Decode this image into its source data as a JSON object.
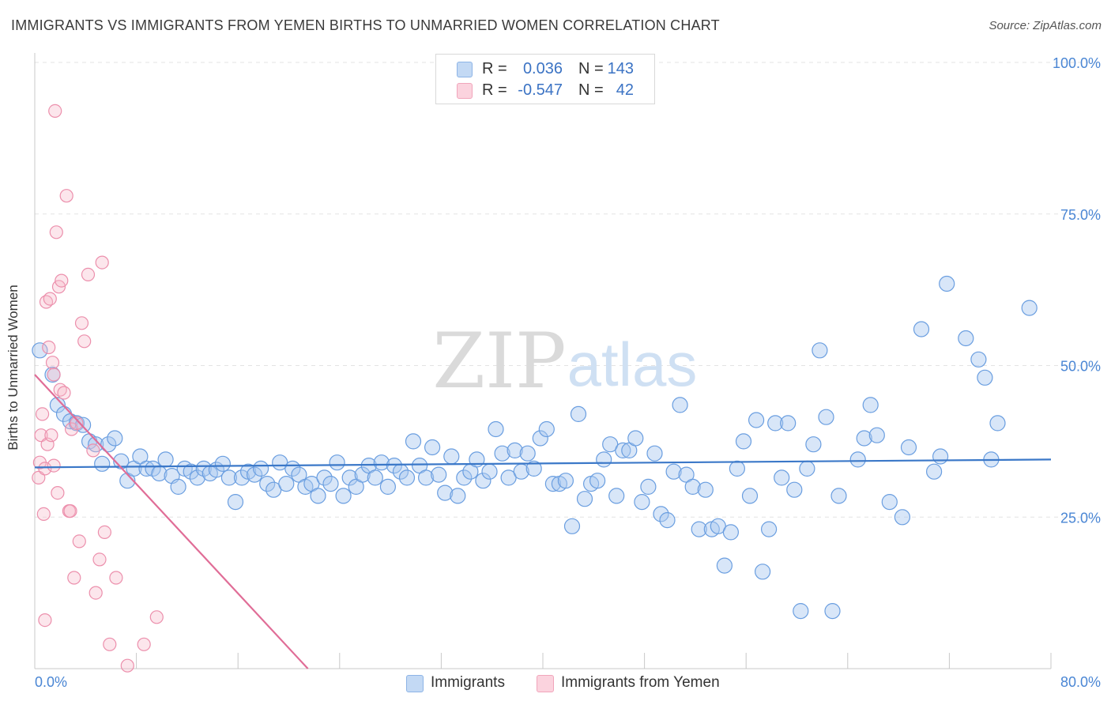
{
  "title": "IMMIGRANTS VS IMMIGRANTS FROM YEMEN BIRTHS TO UNMARRIED WOMEN CORRELATION CHART",
  "source": "Source: ZipAtlas.com",
  "watermark": {
    "zip": "ZIP",
    "atlas": "atlas"
  },
  "legend": {
    "rows": [
      {
        "r_label": "R =",
        "r_value": "0.036",
        "n_label": "N =",
        "n_value": "143",
        "color": "#a9c8ef"
      },
      {
        "r_label": "R =",
        "r_value": "-0.547",
        "n_label": "N =",
        "n_value": "42",
        "color": "#f6b8c9"
      }
    ],
    "bottom": [
      {
        "label": "Immigrants",
        "color": "#a9c8ef"
      },
      {
        "label": "Immigrants from Yemen",
        "color": "#f6b8c9"
      }
    ]
  },
  "chart_data": {
    "type": "scatter",
    "title": "IMMIGRANTS VS IMMIGRANTS FROM YEMEN BIRTHS TO UNMARRIED WOMEN CORRELATION CHART",
    "xlabel": "",
    "ylabel": "Births to Unmarried Women",
    "xlim": [
      0,
      80
    ],
    "ylim": [
      0,
      100
    ],
    "x_tick_labels": [
      "0.0%",
      "80.0%"
    ],
    "y_ticks": [
      25,
      50,
      75,
      100
    ],
    "y_tick_labels": [
      "25.0%",
      "50.0%",
      "75.0%",
      "100.0%"
    ],
    "grid": "horizontal dashed",
    "legend_position": "top-center",
    "series": [
      {
        "name": "Immigrants",
        "color": "#a9c8ef",
        "stroke": "#6a9ee0",
        "trend": {
          "x": [
            0,
            80
          ],
          "y": [
            33.2,
            34.5
          ],
          "color": "#3b78c8"
        },
        "points": [
          [
            0.4,
            52.5
          ],
          [
            1.4,
            48.5
          ],
          [
            1.8,
            43.5
          ],
          [
            2.3,
            42
          ],
          [
            2.8,
            40.8
          ],
          [
            3.3,
            40.5
          ],
          [
            3.8,
            40.2
          ],
          [
            4.3,
            37.5
          ],
          [
            4.8,
            37
          ],
          [
            5.3,
            33.8
          ],
          [
            5.8,
            37
          ],
          [
            6.3,
            38
          ],
          [
            6.8,
            34.2
          ],
          [
            7.3,
            31
          ],
          [
            7.8,
            33
          ],
          [
            8.3,
            35
          ],
          [
            8.8,
            33
          ],
          [
            9.3,
            33
          ],
          [
            9.8,
            32.2
          ],
          [
            10.3,
            34.5
          ],
          [
            10.8,
            31.8
          ],
          [
            11.3,
            30
          ],
          [
            11.8,
            33
          ],
          [
            12.3,
            32.5
          ],
          [
            12.8,
            31.5
          ],
          [
            13.3,
            33
          ],
          [
            13.8,
            32.2
          ],
          [
            14.3,
            32.8
          ],
          [
            14.8,
            33.8
          ],
          [
            15.3,
            31.5
          ],
          [
            15.8,
            27.5
          ],
          [
            16.3,
            31.5
          ],
          [
            16.8,
            32.5
          ],
          [
            17.3,
            32
          ],
          [
            17.8,
            33
          ],
          [
            18.3,
            30.5
          ],
          [
            18.8,
            29.5
          ],
          [
            19.3,
            34
          ],
          [
            19.8,
            30.5
          ],
          [
            20.3,
            33
          ],
          [
            20.8,
            32
          ],
          [
            21.3,
            30
          ],
          [
            21.8,
            30.5
          ],
          [
            22.3,
            28.5
          ],
          [
            22.8,
            31.5
          ],
          [
            23.3,
            30.5
          ],
          [
            23.8,
            34
          ],
          [
            24.3,
            28.5
          ],
          [
            24.8,
            31.5
          ],
          [
            25.3,
            30
          ],
          [
            25.8,
            32
          ],
          [
            26.3,
            33.5
          ],
          [
            26.8,
            31.5
          ],
          [
            27.3,
            34
          ],
          [
            27.8,
            30
          ],
          [
            28.3,
            33.5
          ],
          [
            28.8,
            32.5
          ],
          [
            29.3,
            31.5
          ],
          [
            29.8,
            37.5
          ],
          [
            30.3,
            33.5
          ],
          [
            30.8,
            31.5
          ],
          [
            31.3,
            36.5
          ],
          [
            31.8,
            32
          ],
          [
            32.3,
            29
          ],
          [
            32.8,
            35
          ],
          [
            33.3,
            28.5
          ],
          [
            33.8,
            31.5
          ],
          [
            34.3,
            32.5
          ],
          [
            34.8,
            34.5
          ],
          [
            35.3,
            31
          ],
          [
            35.8,
            32.5
          ],
          [
            36.3,
            39.5
          ],
          [
            36.8,
            35.5
          ],
          [
            37.3,
            31.5
          ],
          [
            37.8,
            36
          ],
          [
            38.3,
            32.5
          ],
          [
            38.8,
            35.5
          ],
          [
            39.3,
            33
          ],
          [
            39.8,
            38
          ],
          [
            40.3,
            39.5
          ],
          [
            40.8,
            30.5
          ],
          [
            41.3,
            30.5
          ],
          [
            41.8,
            31
          ],
          [
            42.3,
            23.5
          ],
          [
            42.8,
            42
          ],
          [
            43.3,
            28
          ],
          [
            43.8,
            30.5
          ],
          [
            44.3,
            31
          ],
          [
            44.8,
            34.5
          ],
          [
            45.3,
            37
          ],
          [
            45.8,
            28.5
          ],
          [
            46.3,
            36
          ],
          [
            46.8,
            36
          ],
          [
            47.3,
            38
          ],
          [
            47.8,
            27.5
          ],
          [
            48.3,
            30
          ],
          [
            48.8,
            35.5
          ],
          [
            49.3,
            25.5
          ],
          [
            49.8,
            24.5
          ],
          [
            50.3,
            32.5
          ],
          [
            50.8,
            43.5
          ],
          [
            51.3,
            32
          ],
          [
            51.8,
            30
          ],
          [
            52.3,
            23
          ],
          [
            52.8,
            29.5
          ],
          [
            53.3,
            23
          ],
          [
            53.8,
            23.5
          ],
          [
            54.3,
            17
          ],
          [
            54.8,
            22.5
          ],
          [
            55.3,
            33
          ],
          [
            55.8,
            37.5
          ],
          [
            56.3,
            28.5
          ],
          [
            56.8,
            41
          ],
          [
            57.3,
            16
          ],
          [
            57.8,
            23
          ],
          [
            58.3,
            40.5
          ],
          [
            58.8,
            31.5
          ],
          [
            59.3,
            40.5
          ],
          [
            59.8,
            29.5
          ],
          [
            60.3,
            9.5
          ],
          [
            60.8,
            33
          ],
          [
            61.3,
            37
          ],
          [
            61.8,
            52.5
          ],
          [
            62.3,
            41.5
          ],
          [
            62.8,
            9.5
          ],
          [
            63.3,
            28.5
          ],
          [
            64.8,
            34.5
          ],
          [
            65.3,
            38
          ],
          [
            65.8,
            43.5
          ],
          [
            66.3,
            38.5
          ],
          [
            67.3,
            27.5
          ],
          [
            68.3,
            25
          ],
          [
            68.8,
            36.5
          ],
          [
            69.8,
            56
          ],
          [
            70.8,
            32.5
          ],
          [
            71.3,
            35
          ],
          [
            71.8,
            63.5
          ],
          [
            73.3,
            54.5
          ],
          [
            74.3,
            51
          ],
          [
            74.8,
            48
          ],
          [
            75.3,
            34.5
          ],
          [
            75.8,
            40.5
          ],
          [
            78.3,
            59.5
          ]
        ]
      },
      {
        "name": "Immigrants from Yemen",
        "color": "#f6b8c9",
        "stroke": "#ec8fac",
        "trend": {
          "x": [
            0,
            21.5
          ],
          "y": [
            48.5,
            0
          ],
          "color": "#e06d97"
        },
        "points": [
          [
            0.3,
            31.5
          ],
          [
            0.4,
            34
          ],
          [
            0.5,
            38.5
          ],
          [
            0.6,
            42
          ],
          [
            0.7,
            25.5
          ],
          [
            0.8,
            33
          ],
          [
            0.9,
            60.5
          ],
          [
            1.0,
            37
          ],
          [
            1.1,
            53
          ],
          [
            1.2,
            61
          ],
          [
            1.3,
            38.5
          ],
          [
            1.4,
            50.5
          ],
          [
            1.5,
            48.5
          ],
          [
            1.6,
            92
          ],
          [
            1.7,
            72
          ],
          [
            1.8,
            29
          ],
          [
            1.9,
            63
          ],
          [
            2.0,
            46
          ],
          [
            2.1,
            64
          ],
          [
            2.3,
            45.5
          ],
          [
            2.5,
            78
          ],
          [
            2.7,
            26
          ],
          [
            2.9,
            39.5
          ],
          [
            3.1,
            15
          ],
          [
            3.3,
            40.5
          ],
          [
            3.5,
            21
          ],
          [
            3.7,
            57
          ],
          [
            3.9,
            54
          ],
          [
            4.2,
            65
          ],
          [
            4.6,
            36
          ],
          [
            4.8,
            12.5
          ],
          [
            5.1,
            18
          ],
          [
            5.3,
            67
          ],
          [
            5.5,
            22.5
          ],
          [
            5.9,
            4
          ],
          [
            6.4,
            15
          ],
          [
            7.3,
            0.5
          ],
          [
            8.6,
            4
          ],
          [
            9.6,
            8.5
          ],
          [
            0.8,
            8
          ],
          [
            2.8,
            26
          ],
          [
            1.5,
            33.5
          ]
        ]
      }
    ]
  }
}
